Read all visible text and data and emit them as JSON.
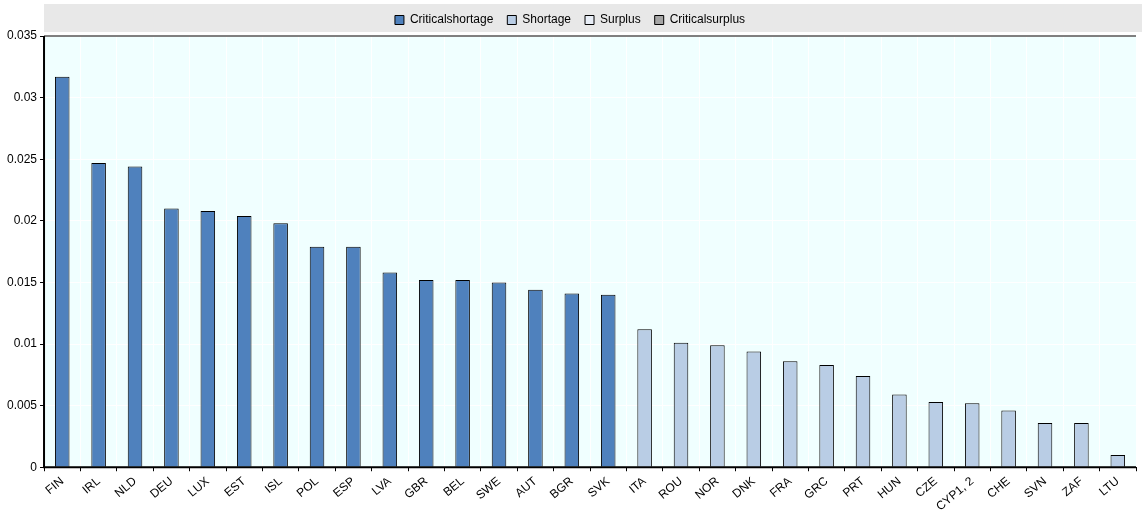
{
  "chart_data": {
    "type": "bar",
    "categories": [
      "FIN",
      "IRL",
      "NLD",
      "DEU",
      "LUX",
      "EST",
      "ISL",
      "POL",
      "ESP",
      "LVA",
      "GBR",
      "BEL",
      "SWE",
      "AUT",
      "BGR",
      "SVK",
      "ITA",
      "ROU",
      "NOR",
      "DNK",
      "FRA",
      "GRC",
      "PRT",
      "HUN",
      "CZE",
      "CYP1, 2",
      "CHE",
      "SVN",
      "ZAF",
      "LTU"
    ],
    "series": [
      {
        "name": "Criticalshortage",
        "color": "#4f81bd",
        "values": [
          0.0317,
          0.0247,
          0.0244,
          0.021,
          0.0208,
          0.0204,
          0.0198,
          0.0179,
          0.0179,
          0.0158,
          0.0152,
          0.0152,
          0.015,
          0.0144,
          0.0141,
          0.014,
          null,
          null,
          null,
          null,
          null,
          null,
          null,
          null,
          null,
          null,
          null,
          null,
          null,
          null
        ]
      },
      {
        "name": "Shortage",
        "color": "#b9cde5",
        "values": [
          null,
          null,
          null,
          null,
          null,
          null,
          null,
          null,
          null,
          null,
          null,
          null,
          null,
          null,
          null,
          null,
          0.0112,
          0.0101,
          0.0099,
          0.0094,
          0.0086,
          0.0083,
          0.0074,
          0.0059,
          0.0053,
          0.0052,
          0.0046,
          0.0036,
          0.0036,
          0.001
        ]
      },
      {
        "name": "Surplus",
        "color": "#e8eef7",
        "values": [
          null,
          null,
          null,
          null,
          null,
          null,
          null,
          null,
          null,
          null,
          null,
          null,
          null,
          null,
          null,
          null,
          null,
          null,
          null,
          null,
          null,
          null,
          null,
          null,
          null,
          null,
          null,
          null,
          null,
          null
        ]
      },
      {
        "name": "Criticalsurplus",
        "color": "#a6a6a6",
        "values": [
          null,
          null,
          null,
          null,
          null,
          null,
          null,
          null,
          null,
          null,
          null,
          null,
          null,
          null,
          null,
          null,
          null,
          null,
          null,
          null,
          null,
          null,
          null,
          null,
          null,
          null,
          null,
          null,
          null,
          null
        ]
      }
    ],
    "ylim": [
      0,
      0.035
    ],
    "yticks": [
      0,
      0.005,
      0.01,
      0.015,
      0.02,
      0.025,
      0.03,
      0.035
    ],
    "grid": true,
    "legend": "top"
  }
}
